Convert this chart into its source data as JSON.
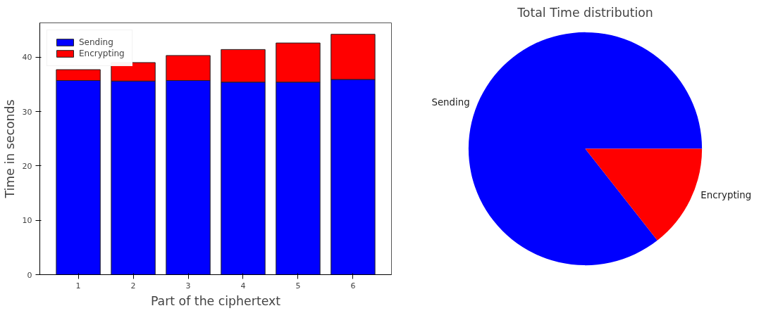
{
  "chart_data": [
    {
      "type": "bar",
      "stacked": true,
      "xlabel": "Part of the ciphertext",
      "ylabel": "Time in seconds",
      "categories": [
        "1",
        "2",
        "3",
        "4",
        "5",
        "6"
      ],
      "series": [
        {
          "name": "Sending",
          "color": "#0000ff",
          "values": [
            35.7,
            35.6,
            35.7,
            35.4,
            35.4,
            35.9
          ]
        },
        {
          "name": "Encrypting",
          "color": "#ff0000",
          "values": [
            2.0,
            3.4,
            4.6,
            6.0,
            7.2,
            8.3
          ]
        }
      ],
      "ylim": [
        0,
        46.3
      ],
      "yticks": [
        0,
        10,
        20,
        30,
        40
      ],
      "grid": false,
      "legend": "top left"
    },
    {
      "type": "pie",
      "title": "Total Time distribution",
      "categories": [
        "Sending",
        "Encrypting"
      ],
      "values": [
        85.6,
        14.4
      ],
      "colors": [
        "#0000ff",
        "#ff0000"
      ]
    }
  ]
}
